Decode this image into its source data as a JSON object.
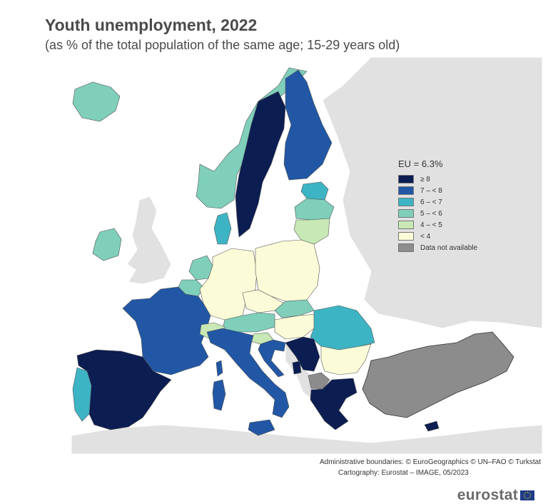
{
  "title": "Youth unemployment, 2022",
  "subtitle": "(as % of the total population of the same age; 15-29 years old)",
  "legend": {
    "title": "EU = 6.3%",
    "items": [
      {
        "label": "≥ 8",
        "color": "#0b1d51"
      },
      {
        "label": "7 – < 8",
        "color": "#2157a5"
      },
      {
        "label": "6 – < 7",
        "color": "#3db4c4"
      },
      {
        "label": "5 – < 6",
        "color": "#7fcfbb"
      },
      {
        "label": "4 – < 5",
        "color": "#c8e9b5"
      },
      {
        "label": "< 4",
        "color": "#fbfbd8"
      },
      {
        "label": "Data not available",
        "color": "#8c8c8c"
      }
    ]
  },
  "colors": {
    "sea": "#ffffff",
    "non_eu_land": "#e1e1e1",
    "border": "#555555"
  },
  "credits": {
    "line1": "Administrative boundaries: © EuroGeographics © UN–FAO © Turkstat",
    "line2": "Cartography: Eurostat – IMAGE, 05/2023"
  },
  "logo": {
    "text": "eurostat"
  }
}
